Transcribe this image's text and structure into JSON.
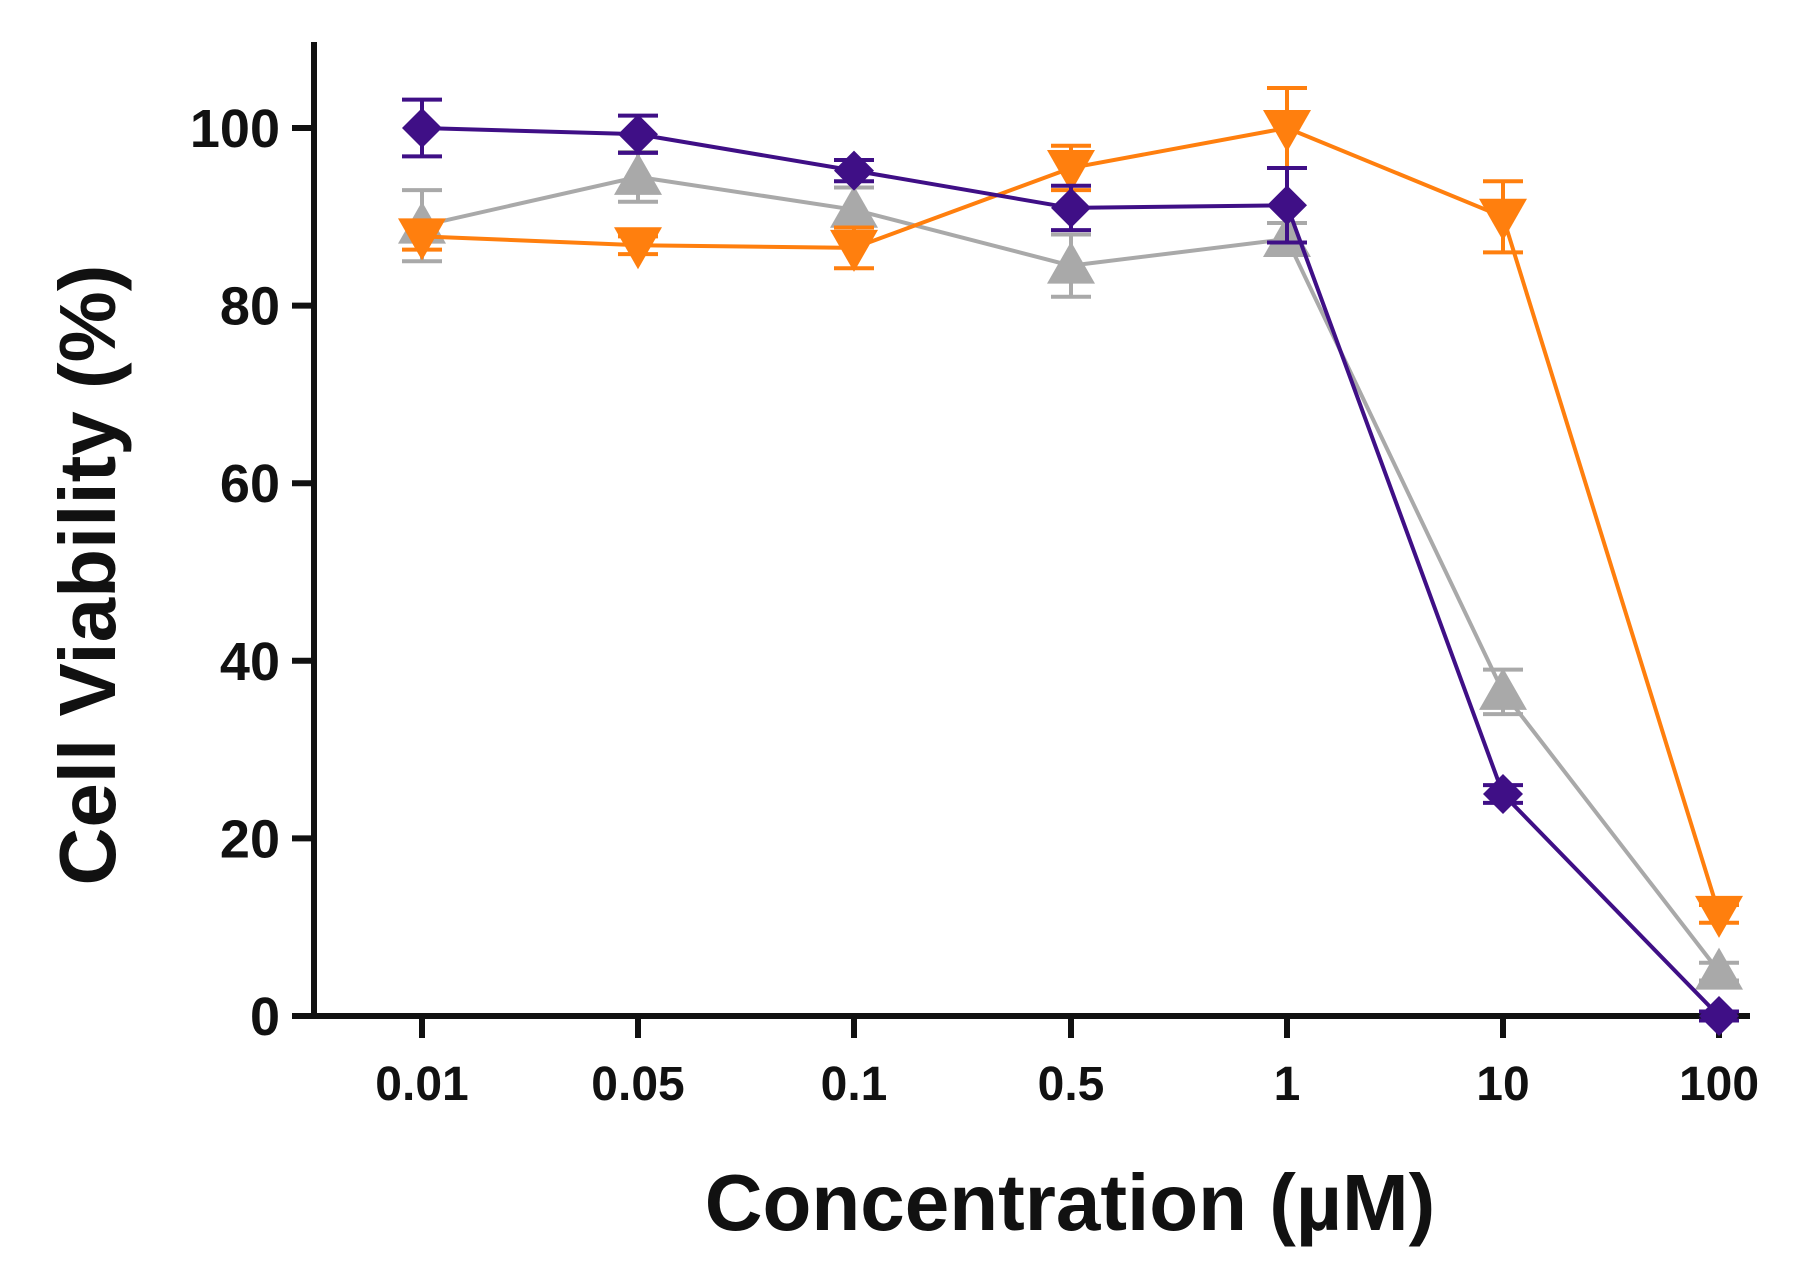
{
  "chart_data": {
    "type": "line",
    "title": "",
    "xlabel": "Concentration (µM)",
    "ylabel": "Cell Viability (%)",
    "categories": [
      "0.01",
      "0.05",
      "0.1",
      "0.5",
      "1",
      "10",
      "100"
    ],
    "y_ticks": [
      "0",
      "20",
      "40",
      "60",
      "80",
      "100"
    ],
    "ylim": [
      0,
      110
    ],
    "grid": false,
    "legend": "none",
    "series": [
      {
        "name": "purple",
        "color": "#3f0f86",
        "marker": "diamond",
        "values": [
          100,
          99.3,
          95.2,
          91,
          91.3,
          25,
          0
        ],
        "errors": [
          3.2,
          2.1,
          1.2,
          2.5,
          4.2,
          1.0,
          0.5
        ]
      },
      {
        "name": "gray",
        "color": "#a9a9a9",
        "marker": "triangle-up",
        "values": [
          89,
          94.5,
          90.8,
          84.5,
          87.5,
          36.5,
          5
        ],
        "errors": [
          4.0,
          2.8,
          2.5,
          3.5,
          1.8,
          2.5,
          1.0
        ]
      },
      {
        "name": "orange",
        "color": "#ff7f0e",
        "marker": "triangle-down",
        "values": [
          87.8,
          86.8,
          86.5,
          95.5,
          100,
          90,
          11.5
        ],
        "errors": [
          1.5,
          1.0,
          2.3,
          2.5,
          4.5,
          4.0,
          1.0
        ]
      }
    ]
  }
}
